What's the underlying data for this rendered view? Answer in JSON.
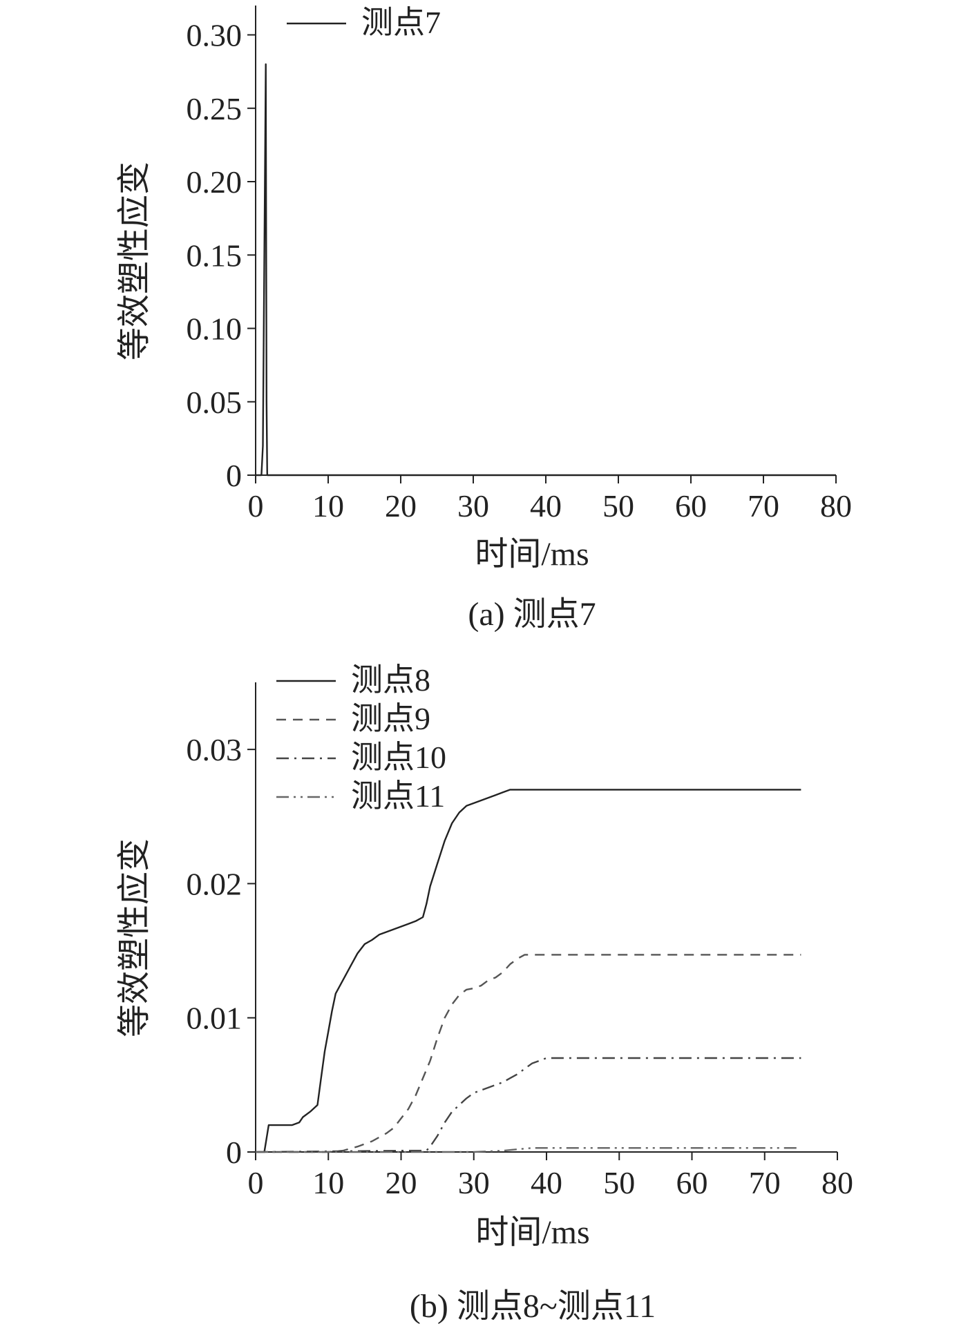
{
  "chart_data": [
    {
      "type": "line",
      "caption": "(a) 测点7",
      "xlabel": "时间/ms",
      "ylabel": "等效塑性应变",
      "xlim": [
        0,
        80
      ],
      "ylim": [
        0,
        0.32
      ],
      "xticks": [
        0,
        10,
        20,
        30,
        40,
        50,
        60,
        70,
        80
      ],
      "xtick_labels": [
        "0",
        "10",
        "20",
        "30",
        "40",
        "50",
        "60",
        "70",
        "80"
      ],
      "yticks": [
        0,
        0.05,
        0.1,
        0.15,
        0.2,
        0.25,
        0.3
      ],
      "ytick_labels": [
        "0",
        "0.05",
        "0.10",
        "0.15",
        "0.20",
        "0.25",
        "0.30"
      ],
      "grid": false,
      "legend_position": "top-left",
      "series": [
        {
          "name": "测点7",
          "style": "solid",
          "color": "#222222",
          "x": [
            0,
            0.8,
            1.0,
            1.2,
            1.4,
            1.5,
            1.6,
            1.8,
            2.5,
            5,
            20,
            40,
            60,
            80
          ],
          "y": [
            0,
            0,
            0.02,
            0.15,
            0.28,
            0.05,
            0.0,
            0,
            0,
            0,
            0,
            0,
            0,
            0
          ]
        }
      ]
    },
    {
      "type": "line",
      "caption": "(b) 测点8~测点11",
      "xlabel": "时间/ms",
      "ylabel": "等效塑性应变",
      "xlim": [
        0,
        80
      ],
      "ylim": [
        0,
        0.035
      ],
      "xticks": [
        0,
        10,
        20,
        30,
        40,
        50,
        60,
        70,
        80
      ],
      "xtick_labels": [
        "0",
        "10",
        "20",
        "30",
        "40",
        "50",
        "60",
        "70",
        "80"
      ],
      "yticks": [
        0,
        0.01,
        0.02,
        0.03
      ],
      "ytick_labels": [
        "0",
        "0.01",
        "0.02",
        "0.03"
      ],
      "grid": false,
      "legend_position": "top-left",
      "series": [
        {
          "name": "测点8",
          "style": "solid",
          "color": "#222222",
          "x": [
            1.2,
            1.8,
            2,
            3,
            5,
            6,
            6.5,
            7.5,
            8.5,
            9,
            9.5,
            10,
            10.5,
            11,
            12,
            13,
            14,
            15,
            16,
            17,
            18,
            19,
            20,
            21,
            22,
            23,
            23.5,
            24,
            25,
            26,
            27,
            28,
            29,
            30,
            31,
            32,
            33,
            34,
            35,
            40,
            50,
            60,
            70,
            75
          ],
          "y": [
            0,
            0.002,
            0.002,
            0.002,
            0.002,
            0.0022,
            0.0026,
            0.003,
            0.0035,
            0.0055,
            0.0075,
            0.009,
            0.0105,
            0.0118,
            0.0128,
            0.0138,
            0.0148,
            0.0155,
            0.0158,
            0.0162,
            0.0164,
            0.0166,
            0.0168,
            0.017,
            0.0172,
            0.0175,
            0.0185,
            0.0198,
            0.0215,
            0.0232,
            0.0245,
            0.0253,
            0.0258,
            0.026,
            0.0262,
            0.0264,
            0.0266,
            0.0268,
            0.027,
            0.027,
            0.027,
            0.027,
            0.027,
            0.027
          ]
        },
        {
          "name": "测点9",
          "style": "dashed",
          "color": "#555555",
          "x": [
            0,
            10,
            12,
            14,
            16,
            18,
            19,
            20,
            21,
            22,
            23,
            24,
            25,
            26,
            27,
            28,
            29,
            30,
            31,
            32,
            33,
            34,
            35,
            36,
            37,
            38,
            40,
            50,
            60,
            70,
            75
          ],
          "y": [
            0,
            0,
            0.0001,
            0.0004,
            0.0008,
            0.0014,
            0.0018,
            0.0025,
            0.0032,
            0.0042,
            0.0055,
            0.0068,
            0.0085,
            0.01,
            0.011,
            0.0117,
            0.0121,
            0.0122,
            0.0124,
            0.0128,
            0.013,
            0.0134,
            0.014,
            0.0144,
            0.0147,
            0.0147,
            0.0147,
            0.0147,
            0.0147,
            0.0147,
            0.0147
          ]
        },
        {
          "name": "测点10",
          "style": "dashdot",
          "color": "#444444",
          "x": [
            0,
            20,
            23,
            23.5,
            24,
            25,
            26,
            27,
            28,
            29,
            30,
            32,
            34,
            35,
            36,
            37,
            38,
            39,
            40,
            42,
            45,
            50,
            60,
            70,
            75
          ],
          "y": [
            0,
            0.0001,
            0.0001,
            0.0001,
            0.0004,
            0.0012,
            0.0022,
            0.003,
            0.0035,
            0.004,
            0.0044,
            0.0048,
            0.0052,
            0.0055,
            0.0058,
            0.0062,
            0.0066,
            0.0068,
            0.007,
            0.007,
            0.007,
            0.007,
            0.007,
            0.007,
            0.007
          ]
        },
        {
          "name": "测点11",
          "style": "dashdotdot",
          "color": "#666666",
          "x": [
            0,
            30,
            34,
            36,
            38,
            40,
            50,
            60,
            70,
            75
          ],
          "y": [
            0,
            0,
            0.0001,
            0.0002,
            0.0003,
            0.0003,
            0.0003,
            0.0003,
            0.0003,
            0.0003
          ]
        }
      ]
    }
  ]
}
